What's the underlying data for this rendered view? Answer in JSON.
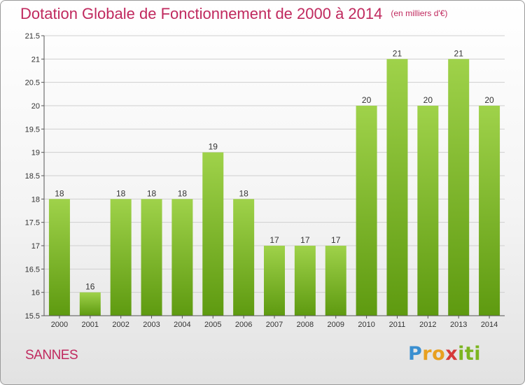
{
  "header": {
    "title": "Dotation Globale de Fonctionnement de 2000 à 2014",
    "unit": "(en milliers d'€)"
  },
  "footer": {
    "commune": "SANNES",
    "logo": "Proxiti"
  },
  "colors": {
    "title": "#c0295e",
    "bar_top": "#9fd24a",
    "bar_bottom": "#5e9a10",
    "grid": "#cfcfcf"
  },
  "chart_data": {
    "type": "bar",
    "categories": [
      "2000",
      "2001",
      "2002",
      "2003",
      "2004",
      "2005",
      "2006",
      "2007",
      "2008",
      "2009",
      "2010",
      "2011",
      "2012",
      "2013",
      "2014"
    ],
    "values": [
      18,
      16,
      18,
      18,
      18,
      19,
      18,
      17,
      17,
      17,
      20,
      21,
      20,
      21,
      20
    ],
    "data_labels": [
      "18",
      "16",
      "18",
      "18",
      "18",
      "19",
      "18",
      "17",
      "17",
      "17",
      "20",
      "21",
      "20",
      "21",
      "20"
    ],
    "yticks": [
      "15.5",
      "16",
      "16.5",
      "17",
      "17.5",
      "18",
      "18.5",
      "19",
      "19.5",
      "20",
      "20.5",
      "21",
      "21.5"
    ],
    "ylim": [
      15.5,
      21.5
    ],
    "grid": true
  }
}
